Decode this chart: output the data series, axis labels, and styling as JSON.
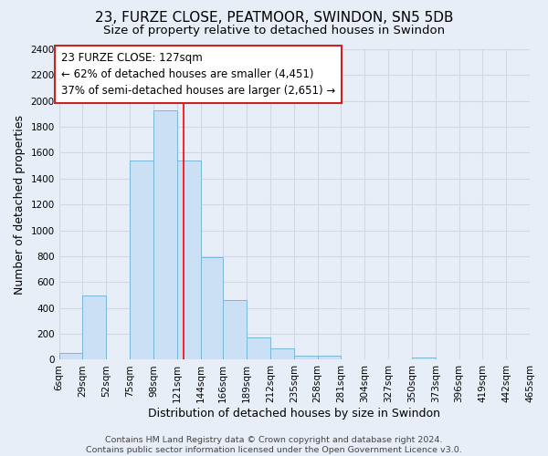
{
  "title": "23, FURZE CLOSE, PEATMOOR, SWINDON, SN5 5DB",
  "subtitle": "Size of property relative to detached houses in Swindon",
  "xlabel": "Distribution of detached houses by size in Swindon",
  "ylabel": "Number of detached properties",
  "bin_labels": [
    "6sqm",
    "29sqm",
    "52sqm",
    "75sqm",
    "98sqm",
    "121sqm",
    "144sqm",
    "166sqm",
    "189sqm",
    "212sqm",
    "235sqm",
    "258sqm",
    "281sqm",
    "304sqm",
    "327sqm",
    "350sqm",
    "373sqm",
    "396sqm",
    "419sqm",
    "442sqm",
    "465sqm"
  ],
  "bin_edges": [
    6,
    29,
    52,
    75,
    98,
    121,
    144,
    166,
    189,
    212,
    235,
    258,
    281,
    304,
    327,
    350,
    373,
    396,
    419,
    442,
    465
  ],
  "bar_heights": [
    50,
    500,
    0,
    1540,
    1930,
    1540,
    790,
    460,
    175,
    90,
    30,
    30,
    0,
    0,
    0,
    20,
    0,
    0,
    0,
    0
  ],
  "bar_color": "#cce0f5",
  "bar_edge_color": "#7ab8d8",
  "red_line_x": 127,
  "ylim": [
    0,
    2400
  ],
  "yticks": [
    0,
    200,
    400,
    600,
    800,
    1000,
    1200,
    1400,
    1600,
    1800,
    2000,
    2200,
    2400
  ],
  "annotation_box_text": [
    "23 FURZE CLOSE: 127sqm",
    "← 62% of detached houses are smaller (4,451)",
    "37% of semi-detached houses are larger (2,651) →"
  ],
  "footer_line1": "Contains HM Land Registry data © Crown copyright and database right 2024.",
  "footer_line2": "Contains public sector information licensed under the Open Government Licence v3.0.",
  "background_color": "#e8eef7",
  "plot_bg_color": "#e8eef7",
  "grid_color": "#d0d8e8",
  "title_fontsize": 11,
  "subtitle_fontsize": 9.5,
  "axis_label_fontsize": 9,
  "tick_fontsize": 7.5,
  "annotation_fontsize": 8.5,
  "footer_fontsize": 6.8
}
